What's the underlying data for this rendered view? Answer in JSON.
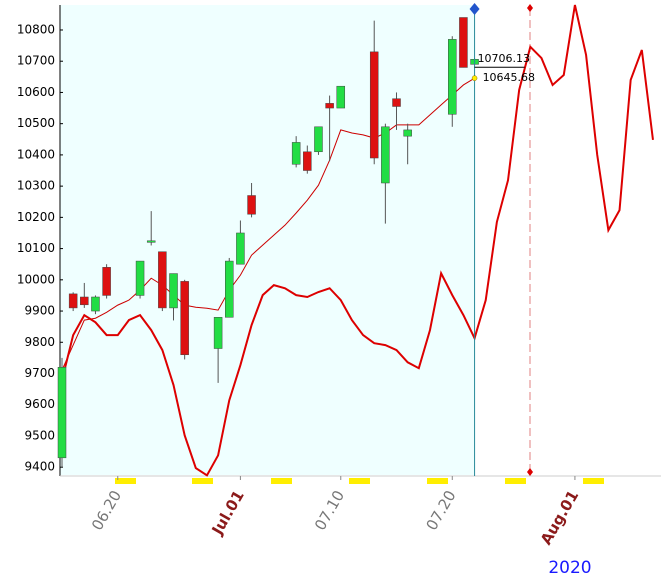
{
  "chart_data": {
    "type": "candlestick",
    "x": [
      0,
      1,
      2,
      3,
      4,
      7,
      8,
      9,
      10,
      11,
      14,
      15,
      16,
      17,
      21,
      22,
      23,
      24,
      25,
      28,
      29,
      30,
      31,
      35,
      36,
      37
    ],
    "open": [
      9430,
      9955,
      9945,
      9900,
      10040,
      9950,
      10120,
      10090,
      9910,
      9995,
      9780,
      9880,
      10050,
      10270,
      10370,
      10410,
      10410,
      10565,
      10550,
      10730,
      10310,
      10580,
      10460,
      10530,
      10840,
      10690
    ],
    "high": [
      9750,
      9960,
      9990,
      9950,
      10050,
      10060,
      10220,
      10090,
      10020,
      10000,
      9880,
      10070,
      10190,
      10310,
      10460,
      10430,
      10490,
      10590,
      10620,
      10830,
      10500,
      10600,
      10500,
      10780,
      10840,
      10710
    ],
    "low": [
      9400,
      9900,
      9910,
      9890,
      9940,
      9940,
      10110,
      9900,
      9870,
      9745,
      9670,
      9880,
      10050,
      10200,
      10360,
      10340,
      10400,
      10380,
      10550,
      10370,
      10180,
      10480,
      10370,
      10490,
      10680,
      10690
    ],
    "close": [
      9720,
      9910,
      9920,
      9945,
      9950,
      10060,
      10125,
      9910,
      10020,
      9760,
      9880,
      10060,
      10150,
      10210,
      10440,
      10350,
      10490,
      10550,
      10620,
      10390,
      10490,
      10555,
      10480,
      10770,
      10680,
      10706.13
    ],
    "up_color": "#22dd44",
    "down_color": "#dd1111",
    "lines": [
      {
        "color": "#cc0000",
        "width": 1,
        "x": [
          0,
          1,
          2,
          3,
          4,
          5,
          6,
          7,
          8,
          9,
          10,
          11,
          12,
          13,
          14,
          15,
          16,
          17,
          18,
          19,
          20,
          21,
          22,
          23,
          24,
          25,
          26,
          27,
          28,
          29,
          30,
          31,
          32,
          33,
          34,
          35,
          36,
          37
        ],
        "values": [
          9711,
          9791,
          9871,
          9877,
          9896,
          9919,
          9935,
          9967,
          10005,
          9983,
          9951,
          9919,
          9912,
          9909,
          9903,
          9967,
          10015,
          10079,
          10111,
          10143,
          10175,
          10214,
          10255,
          10303,
          10383,
          10480,
          10470,
          10464,
          10454,
          10470,
          10496,
          10496,
          10496,
          10528,
          10560,
          10592,
          10624,
          10645.68
        ]
      },
      {
        "color": "#dd0000",
        "width": 2,
        "x": [
          0,
          1,
          2,
          3,
          4,
          5,
          6,
          7,
          8,
          9,
          10,
          11,
          12,
          13,
          14,
          15,
          16,
          17,
          18,
          19,
          20,
          21,
          22,
          23,
          24,
          25,
          26,
          27,
          28,
          29,
          30,
          31,
          32,
          33,
          34,
          35,
          36,
          37,
          38,
          39,
          40,
          41,
          42,
          43,
          44,
          45,
          46,
          47,
          48,
          49,
          50,
          51,
          52,
          53
        ],
        "values": [
          9679,
          9823,
          9887,
          9864,
          9823,
          9823,
          9871,
          9887,
          9839,
          9775,
          9663,
          9502,
          9397,
          9374,
          9438,
          9614,
          9727,
          9855,
          9951,
          9983,
          9973,
          9951,
          9945,
          9961,
          9973,
          9935,
          9871,
          9823,
          9797,
          9791,
          9775,
          9736,
          9717,
          9839,
          10021,
          9951,
          9887,
          9813,
          9935,
          10185,
          10319,
          10608,
          10746,
          10710,
          10624,
          10656,
          10880,
          10720,
          10400,
          10159,
          10223,
          10640,
          10736,
          10448
        ]
      }
    ],
    "price_labels": [
      10706.13,
      10645.68
    ],
    "xlim": [
      -0.18,
      53.72
    ],
    "ylim": [
      9375,
      10880
    ],
    "yticks": [
      9400,
      9500,
      9600,
      9700,
      9800,
      9900,
      10000,
      10100,
      10200,
      10300,
      10400,
      10500,
      10600,
      10700,
      10800
    ],
    "xticks": [
      {
        "value": 5,
        "label": "06.20"
      },
      {
        "value": 16,
        "label": "Jul.01"
      },
      {
        "value": 25,
        "label": "07.10"
      },
      {
        "value": 35,
        "label": "07.20"
      },
      {
        "value": 46,
        "label": "Aug.01"
      }
    ],
    "year_label": "2020"
  }
}
